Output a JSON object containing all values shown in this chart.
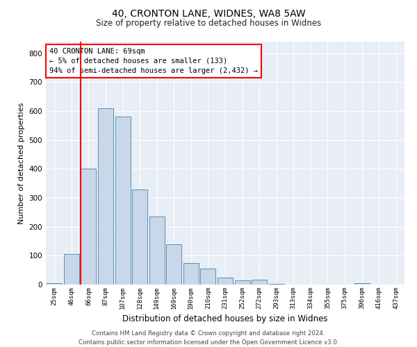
{
  "title": "40, CRONTON LANE, WIDNES, WA8 5AW",
  "subtitle": "Size of property relative to detached houses in Widnes",
  "xlabel": "Distribution of detached houses by size in Widnes",
  "ylabel": "Number of detached properties",
  "categories": [
    "25sqm",
    "46sqm",
    "66sqm",
    "87sqm",
    "107sqm",
    "128sqm",
    "149sqm",
    "169sqm",
    "190sqm",
    "210sqm",
    "231sqm",
    "252sqm",
    "272sqm",
    "293sqm",
    "313sqm",
    "334sqm",
    "355sqm",
    "375sqm",
    "396sqm",
    "416sqm",
    "437sqm"
  ],
  "values": [
    5,
    105,
    400,
    610,
    580,
    330,
    235,
    140,
    75,
    55,
    25,
    15,
    17,
    2,
    1,
    1,
    0,
    0,
    5,
    0,
    0
  ],
  "bar_color": "#c8d8e8",
  "bar_edge_color": "#5b8db8",
  "annotation_text_line1": "40 CRONTON LANE: 69sqm",
  "annotation_text_line2": "← 5% of detached houses are smaller (133)",
  "annotation_text_line3": "94% of semi-detached houses are larger (2,432) →",
  "annotation_box_color": "white",
  "annotation_border_color": "red",
  "vline_color": "red",
  "vline_x_index": 2,
  "ylim": [
    0,
    840
  ],
  "yticks": [
    0,
    100,
    200,
    300,
    400,
    500,
    600,
    700,
    800
  ],
  "background_color": "#e8eef5",
  "grid_color": "white",
  "footer_line1": "Contains HM Land Registry data © Crown copyright and database right 2024.",
  "footer_line2": "Contains public sector information licensed under the Open Government Licence v3.0."
}
